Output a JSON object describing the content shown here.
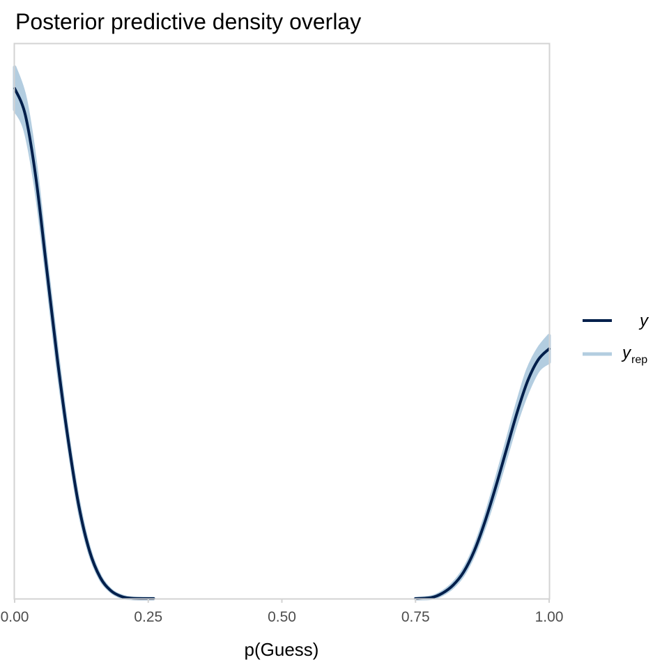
{
  "chart_data": {
    "type": "line",
    "title": "Posterior predictive density overlay",
    "xlabel": "p(Guess)",
    "ylabel": "",
    "xlim": [
      0,
      1
    ],
    "x_ticks": [
      "0.00",
      "0.25",
      "0.50",
      "0.75",
      "1.00"
    ],
    "y_ticks_shown": false,
    "grid": false,
    "legend_position": "right",
    "colors": {
      "y": "#011f4b",
      "yrep": "#b3cde0",
      "panel_border": "#d3d3d3",
      "tick_color": "#4d4d4d"
    },
    "series": [
      {
        "name": "y",
        "x": [
          0.0,
          0.02,
          0.04,
          0.06,
          0.08,
          0.1,
          0.12,
          0.14,
          0.16,
          0.18,
          0.2,
          0.22,
          0.26,
          0.75,
          0.78,
          0.8,
          0.82,
          0.84,
          0.86,
          0.88,
          0.9,
          0.92,
          0.94,
          0.96,
          0.98,
          1.0
        ],
        "values": [
          0.96,
          0.91,
          0.79,
          0.62,
          0.45,
          0.3,
          0.175,
          0.09,
          0.04,
          0.015,
          0.004,
          0.0005,
          0.0,
          0.0,
          0.002,
          0.01,
          0.025,
          0.05,
          0.09,
          0.145,
          0.21,
          0.28,
          0.35,
          0.41,
          0.45,
          0.47
        ]
      },
      {
        "name": "yrep",
        "x": [
          0.0,
          0.02,
          0.04,
          0.06,
          0.08,
          0.1,
          0.12,
          0.14,
          0.16,
          0.18,
          0.2,
          0.22,
          0.26,
          0.75,
          0.78,
          0.8,
          0.82,
          0.84,
          0.86,
          0.88,
          0.9,
          0.92,
          0.94,
          0.96,
          0.98,
          1.0
        ],
        "lower": [
          0.92,
          0.88,
          0.77,
          0.61,
          0.44,
          0.295,
          0.17,
          0.087,
          0.038,
          0.014,
          0.003,
          0.0003,
          0.0,
          0.0,
          0.001,
          0.008,
          0.022,
          0.046,
          0.085,
          0.138,
          0.2,
          0.268,
          0.335,
          0.39,
          0.43,
          0.445
        ],
        "upper": [
          1.0,
          0.94,
          0.81,
          0.63,
          0.46,
          0.305,
          0.18,
          0.093,
          0.042,
          0.016,
          0.005,
          0.0008,
          0.0,
          0.0,
          0.003,
          0.012,
          0.028,
          0.054,
          0.095,
          0.152,
          0.22,
          0.292,
          0.365,
          0.43,
          0.47,
          0.495
        ]
      }
    ],
    "legend": {
      "y_label": "y",
      "yrep_label": "y",
      "yrep_sub": "rep"
    }
  }
}
